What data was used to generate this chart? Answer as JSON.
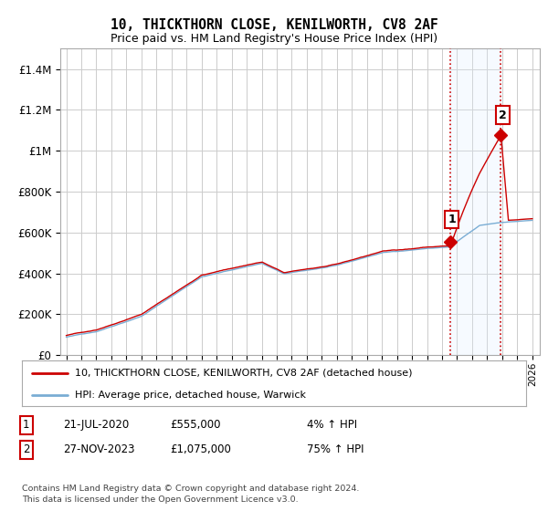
{
  "title": "10, THICKTHORN CLOSE, KENILWORTH, CV8 2AF",
  "subtitle": "Price paid vs. HM Land Registry's House Price Index (HPI)",
  "legend_line1": "10, THICKTHORN CLOSE, KENILWORTH, CV8 2AF (detached house)",
  "legend_line2": "HPI: Average price, detached house, Warwick",
  "table_rows": [
    {
      "num": "1",
      "date": "21-JUL-2020",
      "price": "£555,000",
      "hpi": "4% ↑ HPI"
    },
    {
      "num": "2",
      "date": "27-NOV-2023",
      "price": "£1,075,000",
      "hpi": "75% ↑ HPI"
    }
  ],
  "footnote1": "Contains HM Land Registry data © Crown copyright and database right 2024.",
  "footnote2": "This data is licensed under the Open Government Licence v3.0.",
  "transaction1_date": 2020.55,
  "transaction1_price": 555000,
  "transaction2_date": 2023.91,
  "transaction2_price": 1075000,
  "hpi_color": "#7aadd4",
  "price_color": "#cc0000",
  "vline_color": "#cc0000",
  "ylim": [
    0,
    1500000
  ],
  "yticks": [
    0,
    200000,
    400000,
    600000,
    800000,
    1000000,
    1200000,
    1400000
  ],
  "background_color": "#ffffff",
  "grid_color": "#cccccc",
  "span_color": "#ddeeff"
}
